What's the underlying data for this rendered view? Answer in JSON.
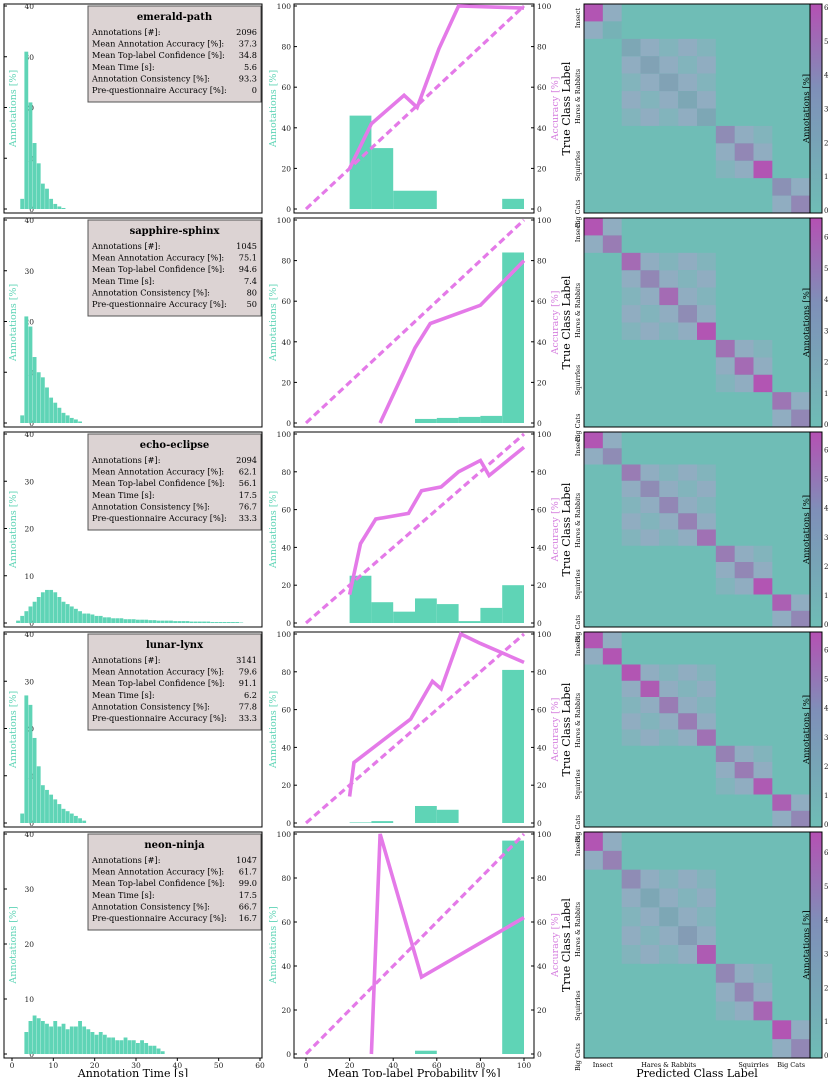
{
  "colors": {
    "hist": "#5fd4b6",
    "accuracy": "#e47ae8",
    "accuracy_text": "#d57fdf",
    "hist_text": "#5fd4b6",
    "box_bg": "#dcd3d3",
    "cm_bg": "#6fbdb6",
    "cm_diag": "#b550b3"
  },
  "labels": {
    "hist_ylabel": "Annotations [%]",
    "hist_xlabel": "Annotation Time [s]",
    "cal_ylabel_left": "Annotations [%]",
    "cal_ylabel_right": "Accuracy [%]",
    "cal_xlabel": "Mean Top-label Probability [%]",
    "cm_ylabel": "True Class Label",
    "cm_xlabel": "Predicted Class Label",
    "cbar_label": "Annotations [%]"
  },
  "stat_names": [
    "Annotations [#]:",
    "Mean Annotation Accuracy [%]:",
    "Mean Top-label Confidence [%]:",
    "Mean Time [s]:",
    "Annotation Consistency [%]:",
    "Pre-questionnaire Accuracy [%]:"
  ],
  "cm_class_ticks": [
    "Insect",
    "Hares & Rabbits",
    "Squirrles",
    "Big Cats"
  ],
  "chart_data": [
    {
      "annotator": "emerald-path",
      "stats": [
        "2096",
        "37.3",
        "34.8",
        "5.6",
        "93.3",
        "0"
      ],
      "hist": {
        "type": "bar",
        "xlim": [
          0,
          60
        ],
        "ylim": [
          0,
          40
        ],
        "bin_start": 2,
        "bin_width": 1,
        "values": [
          2,
          31,
          21,
          13,
          9,
          5,
          4,
          2,
          1,
          0.5,
          0.2
        ]
      },
      "calibration": {
        "type": "bar+line",
        "bin_edges": [
          20,
          30,
          40,
          50,
          60,
          90,
          100
        ],
        "bars": [
          46,
          30,
          9,
          9,
          0,
          5
        ],
        "acc_x": [
          20,
          30,
          45,
          51,
          61,
          70,
          100
        ],
        "acc_y": [
          20,
          42,
          56,
          50,
          79,
          100,
          99
        ]
      },
      "cm_diag": [
        0.95,
        0.1,
        0.2,
        0.25,
        0.25,
        0.2,
        0.2,
        0.45,
        0.5,
        0.95,
        0.4
      ],
      "cbar": {
        "max": 6,
        "ticks": [
          "0",
          "1",
          "2",
          "3",
          "4",
          "5",
          "6"
        ]
      }
    },
    {
      "annotator": "sapphire-sphinx",
      "stats": [
        "1045",
        "75.1",
        "94.6",
        "7.4",
        "80",
        "50"
      ],
      "hist": {
        "type": "bar",
        "xlim": [
          0,
          60
        ],
        "ylim": [
          0,
          40
        ],
        "bin_start": 2,
        "bin_width": 1,
        "values": [
          1.5,
          21,
          19,
          13,
          10,
          9,
          7,
          5,
          4,
          3,
          2,
          1.5,
          1,
          0.7,
          0.3
        ]
      },
      "calibration": {
        "type": "bar+line",
        "bin_edges": [
          20,
          30,
          40,
          50,
          60,
          70,
          80,
          90,
          100
        ],
        "bars": [
          0,
          0,
          0,
          2,
          2.5,
          3,
          3.5,
          84
        ],
        "acc_x": [
          34,
          50,
          57,
          80,
          100
        ],
        "acc_y": [
          0,
          37,
          49,
          58,
          80
        ]
      },
      "cm_diag": [
        0.95,
        0.6,
        0.75,
        0.5,
        0.75,
        0.45,
        0.95,
        0.7,
        0.75,
        0.95,
        0.65
      ],
      "cbar": {
        "max": 6.5,
        "ticks": [
          "0",
          "1",
          "2",
          "3",
          "4",
          "5",
          "6"
        ]
      }
    },
    {
      "annotator": "echo-eclipse",
      "stats": [
        "2094",
        "62.1",
        "56.1",
        "17.5",
        "76.7",
        "33.3"
      ],
      "hist": {
        "type": "bar",
        "xlim": [
          0,
          60
        ],
        "ylim": [
          0,
          40
        ],
        "bin_start": 1,
        "bin_width": 1,
        "values": [
          0.5,
          1.5,
          2.5,
          3.5,
          4.5,
          5.5,
          6.5,
          7,
          7,
          6.5,
          5.5,
          4.5,
          4,
          3.5,
          3,
          2.5,
          2,
          2,
          1.8,
          1.5,
          1.5,
          1.2,
          1.2,
          1,
          1,
          1,
          0.8,
          0.8,
          0.8,
          0.7,
          0.7,
          0.7,
          0.6,
          0.6,
          0.5,
          0.5,
          0.5,
          0.5,
          0.4,
          0.4,
          0.4,
          0.4,
          0.3,
          0.3,
          0.3,
          0.3,
          0.3,
          0.2,
          0.2,
          0.2,
          0.2,
          0.2,
          0.2,
          0.2,
          0.1
        ]
      },
      "calibration": {
        "type": "bar+line",
        "bin_edges": [
          20,
          30,
          40,
          50,
          60,
          70,
          80,
          90,
          100
        ],
        "bars": [
          25,
          11,
          6,
          13,
          10,
          1,
          8,
          20
        ],
        "acc_x": [
          20,
          25,
          32,
          47,
          53,
          62,
          70,
          80,
          84,
          100
        ],
        "acc_y": [
          15,
          42,
          55,
          58,
          70,
          72,
          80,
          86,
          78,
          93
        ]
      },
      "cm_diag": [
        0.95,
        0.45,
        0.6,
        0.45,
        0.5,
        0.55,
        0.7,
        0.6,
        0.5,
        0.95,
        0.85
      ],
      "cbar": {
        "max": 6.5,
        "ticks": [
          "0",
          "1",
          "2",
          "3",
          "4",
          "5",
          "6"
        ]
      }
    },
    {
      "annotator": "lunar-lynx",
      "stats": [
        "3141",
        "79.6",
        "91.1",
        "6.2",
        "77.8",
        "33.3"
      ],
      "hist": {
        "type": "bar",
        "xlim": [
          0,
          60
        ],
        "ylim": [
          0,
          40
        ],
        "bin_start": 2,
        "bin_width": 1,
        "values": [
          2,
          27,
          25,
          18,
          12,
          8,
          7,
          6,
          5,
          4,
          3,
          2.5,
          2,
          1.5,
          1,
          0.5
        ]
      },
      "calibration": {
        "type": "bar+line",
        "bin_edges": [
          20,
          30,
          40,
          50,
          60,
          70,
          80,
          90,
          100
        ],
        "bars": [
          0.3,
          1,
          0,
          9,
          7,
          0,
          0,
          81
        ],
        "acc_x": [
          20,
          22,
          48,
          58,
          62,
          71,
          80,
          100
        ],
        "acc_y": [
          14,
          32,
          55,
          75,
          71,
          100,
          95,
          85
        ]
      },
      "cm_diag": [
        0.95,
        0.95,
        0.95,
        0.9,
        0.6,
        0.6,
        0.7,
        0.55,
        0.6,
        0.9,
        0.85
      ],
      "cbar": {
        "max": 6.5,
        "ticks": [
          "0",
          "1",
          "2",
          "3",
          "4",
          "5",
          "6"
        ]
      }
    },
    {
      "annotator": "neon-ninja",
      "stats": [
        "1047",
        "61.7",
        "99.0",
        "17.5",
        "66.7",
        "16.7"
      ],
      "hist": {
        "type": "bar",
        "xlim": [
          0,
          60
        ],
        "ylim": [
          0,
          40
        ],
        "bin_start": 3,
        "bin_width": 1,
        "values": [
          4,
          6,
          7,
          6.5,
          6,
          5.5,
          5,
          6,
          5,
          5.5,
          4.5,
          5,
          5,
          6,
          5,
          4.5,
          4,
          3.5,
          4,
          3.5,
          3,
          3,
          2.5,
          2.5,
          3,
          2.5,
          2.5,
          2,
          2.5,
          2,
          1.5,
          1.5,
          1,
          0.5
        ]
      },
      "calibration": {
        "type": "bar+line",
        "bin_edges": [
          50,
          60,
          90,
          100
        ],
        "bars": [
          1.5,
          0,
          97
        ],
        "acc_x": [
          30,
          34,
          53,
          100
        ],
        "acc_y": [
          0,
          100,
          35,
          62
        ]
      },
      "cm_diag": [
        0.95,
        0.55,
        0.45,
        0.2,
        0.2,
        0.3,
        0.9,
        0.5,
        0.5,
        0.8,
        0.95
      ],
      "cbar": {
        "max": 6.5,
        "ticks": [
          "0",
          "1",
          "2",
          "3",
          "4",
          "5",
          "6"
        ]
      }
    }
  ]
}
